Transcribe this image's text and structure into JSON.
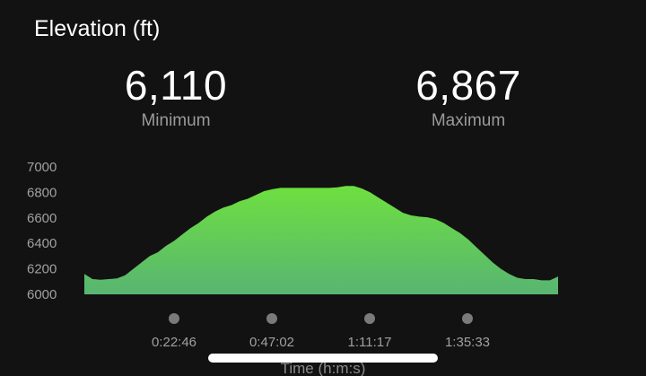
{
  "header": {
    "title": "Elevation (ft)"
  },
  "stats": {
    "minimum": {
      "value": "6,110",
      "label": "Minimum"
    },
    "maximum": {
      "value": "6,867",
      "label": "Maximum"
    }
  },
  "colors": {
    "background": "#121212",
    "fill_top": "#6ee03f",
    "fill_bottom": "#58b572",
    "marker": "#7a7a7a"
  },
  "chart_data": {
    "type": "area",
    "ylabel": "",
    "xlabel": "Time (h:m:s)",
    "y_ticks": [
      6000,
      6200,
      6400,
      6600,
      6800,
      7000
    ],
    "y_tick_labels": [
      "6000",
      "6200",
      "6400",
      "6600",
      "6800",
      "7000"
    ],
    "ylim": [
      6000,
      7000
    ],
    "x_ticks": [
      "0:22:46",
      "0:47:02",
      "1:11:17",
      "1:35:33"
    ],
    "grid": false,
    "series": [
      {
        "values": [
          6160,
          6120,
          6115,
          6120,
          6125,
          6150,
          6200,
          6250,
          6300,
          6330,
          6380,
          6420,
          6470,
          6520,
          6560,
          6610,
          6650,
          6680,
          6700,
          6730,
          6750,
          6780,
          6810,
          6825,
          6835,
          6835,
          6835,
          6835,
          6835,
          6835,
          6835,
          6840,
          6850,
          6850,
          6830,
          6800,
          6760,
          6720,
          6680,
          6640,
          6620,
          6610,
          6605,
          6590,
          6560,
          6520,
          6480,
          6430,
          6370,
          6310,
          6250,
          6200,
          6160,
          6130,
          6120,
          6120,
          6110,
          6110,
          6140
        ]
      }
    ]
  }
}
